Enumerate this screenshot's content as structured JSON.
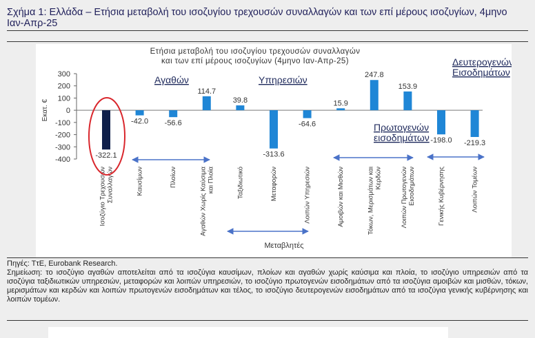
{
  "figure": {
    "title": "Σχήμα 1: Ελλάδα – Ετήσια μεταβολή του ισοζυγίου τρεχουσών συναλλαγών και των επί μέρους ισοζυγίων, 4μηνο Ιαν-Απρ-25",
    "source": "Πηγές: ΤτΕ, Eurobank Research.",
    "note": "Σημείωση: το ισοζύγιο αγαθών αποτελείται από τα ισοζύγια καυσίμων, πλοίων και αγαθών χωρίς καύσιμα και πλοία, το ισοζύγιο υπηρεσιών από τα ισοζύγια ταξιδιωτικών υπηρεσιών, μεταφορών και λοιπών υπηρεσιών, το ισοζύγιο πρωτογενών εισοδημάτων από τα ισοζύγια αμοιβών και μισθών, τόκων, μερισμάτων και κερδών και λοιπών πρωτογενών εισοδημάτων και τέλος, το ισοζύγιο δευτερογενών εισοδημάτων από τα ισοζύγια γενικής κυβέρνησης και λοιπών τομέων."
  },
  "chart_data": {
    "type": "bar",
    "title_line1": "Ετήσια μεταβολή του ισοζυγίου τρεχουσών συναλλαγών",
    "title_line2": "και των επί μέρους ισοζυγίων (4μηνο Ιαν-Απρ-25)",
    "xlabel": "Μεταβλητές",
    "ylabel": "Εκατ. €",
    "ylim": [
      -400,
      300
    ],
    "yticks": [
      300,
      200,
      100,
      0,
      -100,
      -200,
      -300,
      -400
    ],
    "grid": false,
    "colors": {
      "highlight": "#0f1f4a",
      "bars": "#1f86d6",
      "circle": "#d9262c",
      "arrows": "#4a72c8"
    },
    "categories": [
      {
        "label": [
          "Ισοζύγιο Τρεχουσών",
          "Συναλλαγών"
        ],
        "value": -322.1,
        "data_label": "-322.1",
        "highlight": true
      },
      {
        "label": [
          "Καυσίμων"
        ],
        "value": -42.0,
        "data_label": "-42.0"
      },
      {
        "label": [
          "Πλοίων"
        ],
        "value": -56.6,
        "data_label": "-56.6"
      },
      {
        "label": [
          "Αγαθών Χωρίς Καύσιμα",
          "και Πλοία"
        ],
        "value": 114.7,
        "data_label": "114.7"
      },
      {
        "label": [
          "Ταξιδιωτικό"
        ],
        "value": 39.8,
        "data_label": "39.8"
      },
      {
        "label": [
          "Μεταφορών"
        ],
        "value": -313.6,
        "data_label": "-313.6"
      },
      {
        "label": [
          "Λοιπών Υπηρεσιών"
        ],
        "value": -64.6,
        "data_label": "-64.6"
      },
      {
        "label": [
          "Αμοιβών και Μισθών"
        ],
        "value": 15.9,
        "data_label": "15.9"
      },
      {
        "label": [
          "Τόκων, Μερισμάτων και",
          "Κερδών"
        ],
        "value": 247.8,
        "data_label": "247.8"
      },
      {
        "label": [
          "Λοιπών Πρωτογενών",
          "Εισοδημάτων"
        ],
        "value": 153.9,
        "data_label": "153.9"
      },
      {
        "label": [
          "Γενικής Κυβέρνησης"
        ],
        "value": -198.0,
        "data_label": "-198.0"
      },
      {
        "label": [
          "Λοιπών Τομέων"
        ],
        "value": -219.3,
        "data_label": "-219.3"
      }
    ],
    "groups": [
      {
        "label": [
          "Αγαθών"
        ],
        "from": 1,
        "to": 3
      },
      {
        "label": [
          "Υπηρεσιών"
        ],
        "from": 4,
        "to": 6
      },
      {
        "label": [
          "Πρωτογενών",
          "εισοδημάτων"
        ],
        "from": 7,
        "to": 9
      },
      {
        "label": [
          "Δευτερογενών",
          "Εισοδημάτων"
        ],
        "from": 10,
        "to": 11
      }
    ]
  }
}
